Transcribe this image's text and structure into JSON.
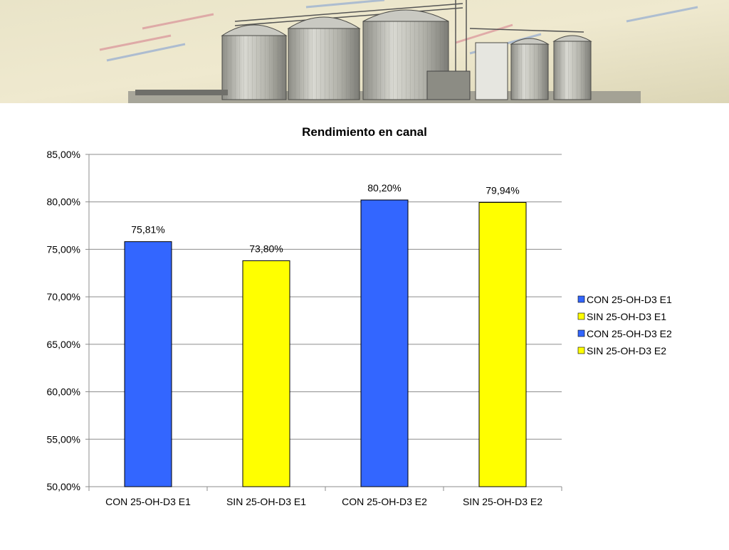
{
  "chart_data": {
    "type": "bar",
    "title": "Rendimiento en canal",
    "xlabel": "",
    "ylabel": "",
    "categories": [
      "CON 25-OH-D3 E1",
      "SIN 25-OH-D3 E1",
      "CON 25-OH-D3 E2",
      "SIN 25-OH-D3 E2"
    ],
    "values": [
      75.81,
      73.8,
      80.2,
      79.94
    ],
    "data_labels": [
      "75,81%",
      "73,80%",
      "80,20%",
      "79,94%"
    ],
    "colors": [
      "#3366FF",
      "#FFFF00",
      "#3366FF",
      "#FFFF00"
    ],
    "ylim": [
      50,
      85
    ],
    "y_ticks": [
      50,
      55,
      60,
      65,
      70,
      75,
      80,
      85
    ],
    "y_tick_labels": [
      "50,00%",
      "55,00%",
      "60,00%",
      "65,00%",
      "70,00%",
      "75,00%",
      "80,00%",
      "85,00%"
    ],
    "grid": true,
    "legend_position": "right",
    "legend": [
      {
        "label": "CON 25-OH-D3 E1",
        "color": "#3366FF"
      },
      {
        "label": "SIN 25-OH-D3 E1",
        "color": "#FFFF00"
      },
      {
        "label": "CON 25-OH-D3 E2",
        "color": "#3366FF"
      },
      {
        "label": "SIN 25-OH-D3 E2",
        "color": "#FFFF00"
      }
    ]
  }
}
